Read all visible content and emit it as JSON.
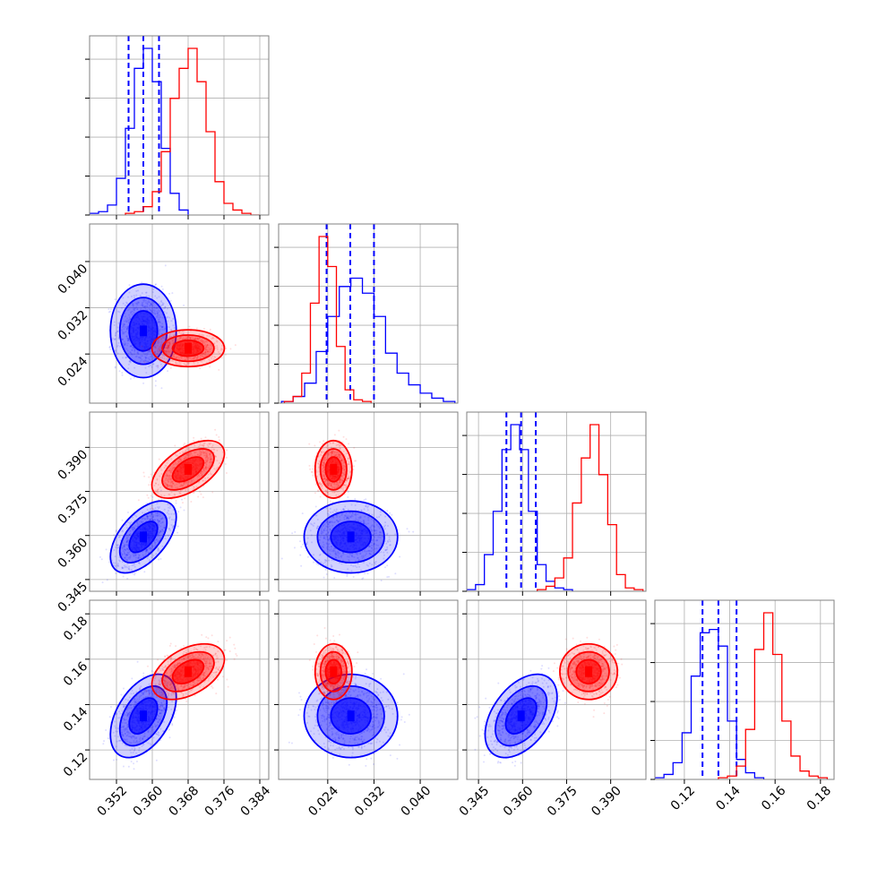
{
  "chart_data": {
    "type": "corner",
    "colors": {
      "series_a": "#0000ff",
      "series_b": "#ff0000",
      "grid": "#b0b0b0",
      "axis": "#000000"
    },
    "parameters": [
      {
        "lim": [
          0.346,
          0.386
        ],
        "ticks": [
          0.352,
          0.36,
          0.368,
          0.376,
          0.384
        ],
        "tick_labels": [
          "0.352",
          "0.360",
          "0.368",
          "0.376",
          "0.384"
        ]
      },
      {
        "lim": [
          0.0155,
          0.0465
        ],
        "ticks": [
          0.024,
          0.032,
          0.04
        ],
        "tick_labels": [
          "0.024",
          "0.032",
          "0.040"
        ]
      },
      {
        "lim": [
          0.341,
          0.402
        ],
        "ticks": [
          0.345,
          0.36,
          0.375,
          0.39
        ],
        "tick_labels": [
          "0.345",
          "0.360",
          "0.375",
          "0.390"
        ]
      },
      {
        "lim": [
          0.107,
          0.186
        ],
        "ticks": [
          0.12,
          0.14,
          0.16,
          0.18
        ],
        "tick_labels": [
          "0.12",
          "0.14",
          "0.16",
          "0.18"
        ]
      }
    ],
    "series": [
      {
        "color": "#0000ff",
        "quantile_lines": true,
        "means": [
          0.358,
          0.028,
          0.3595,
          0.135
        ],
        "sigmas": [
          0.003,
          0.0033,
          0.005,
          0.0075
        ],
        "correlations": {
          "0_1": 0.0,
          "0_2": 0.55,
          "0_3": 0.45,
          "1_2": 0.0,
          "1_3": 0.0,
          "2_3": 0.45
        },
        "quantiles": [
          [
            0.3547,
            0.358,
            0.3615
          ],
          [
            0.0238,
            0.0279,
            0.032
          ],
          [
            0.3545,
            0.3595,
            0.3645
          ],
          [
            0.128,
            0.135,
            0.143
          ]
        ],
        "histograms": [
          {
            "edges": [
              0.346,
              0.348,
              0.35,
              0.352,
              0.354,
              0.356,
              0.358,
              0.36,
              0.362,
              0.364,
              0.366,
              0.368
            ],
            "counts": [
              1,
              2,
              6,
              22,
              52,
              88,
              100,
              80,
              40,
              13,
              3
            ]
          },
          {
            "edges": [
              0.016,
              0.018,
              0.02,
              0.022,
              0.024,
              0.026,
              0.028,
              0.03,
              0.032,
              0.034,
              0.036,
              0.038,
              0.04,
              0.042,
              0.044,
              0.046
            ],
            "counts": [
              1,
              4,
              12,
              31,
              52,
              70,
              75,
              66,
              52,
              30,
              18,
              11,
              6,
              3,
              1
            ]
          },
          {
            "edges": [
              0.341,
              0.344,
              0.347,
              0.35,
              0.353,
              0.356,
              0.359,
              0.362,
              0.365,
              0.368,
              0.371,
              0.374,
              0.377
            ],
            "counts": [
              1,
              4,
              22,
              48,
              85,
              100,
              85,
              48,
              16,
              6,
              2,
              1
            ]
          },
          {
            "edges": [
              0.107,
              0.111,
              0.115,
              0.119,
              0.123,
              0.127,
              0.131,
              0.135,
              0.139,
              0.143,
              0.147,
              0.151,
              0.155
            ],
            "counts": [
              1,
              3,
              10,
              28,
              62,
              88,
              90,
              80,
              35,
              12,
              4,
              1
            ]
          }
        ]
      },
      {
        "color": "#ff0000",
        "quantile_lines": false,
        "means": [
          0.368,
          0.025,
          0.3825,
          0.1545
        ],
        "sigmas": [
          0.0033,
          0.0013,
          0.004,
          0.005
        ],
        "correlations": {
          "0_1": 0.0,
          "0_2": 0.55,
          "0_3": 0.45,
          "1_2": 0.0,
          "1_3": 0.0,
          "2_3": 0.0
        },
        "histograms": [
          {
            "edges": [
              0.354,
              0.356,
              0.358,
              0.36,
              0.362,
              0.364,
              0.366,
              0.368,
              0.37,
              0.372,
              0.374,
              0.376,
              0.378,
              0.38,
              0.382,
              0.384
            ],
            "counts": [
              1,
              2,
              5,
              14,
              38,
              70,
              88,
              100,
              80,
              50,
              20,
              7,
              3,
              1,
              0
            ]
          },
          {
            "edges": [
              0.0165,
              0.018,
              0.0195,
              0.021,
              0.0225,
              0.024,
              0.0255,
              0.027,
              0.0285,
              0.03,
              0.0315
            ],
            "counts": [
              1,
              4,
              18,
              60,
              100,
              82,
              34,
              8,
              2,
              1
            ]
          },
          {
            "edges": [
              0.365,
              0.368,
              0.371,
              0.374,
              0.377,
              0.38,
              0.383,
              0.386,
              0.389,
              0.392,
              0.395,
              0.398,
              0.401
            ],
            "counts": [
              1,
              3,
              8,
              20,
              53,
              80,
              100,
              70,
              40,
              10,
              2,
              1
            ]
          },
          {
            "edges": [
              0.135,
              0.139,
              0.143,
              0.147,
              0.151,
              0.155,
              0.159,
              0.163,
              0.167,
              0.171,
              0.175,
              0.179,
              0.183
            ],
            "counts": [
              1,
              2,
              8,
              30,
              78,
              100,
              75,
              35,
              14,
              5,
              2,
              1
            ]
          }
        ]
      }
    ]
  }
}
